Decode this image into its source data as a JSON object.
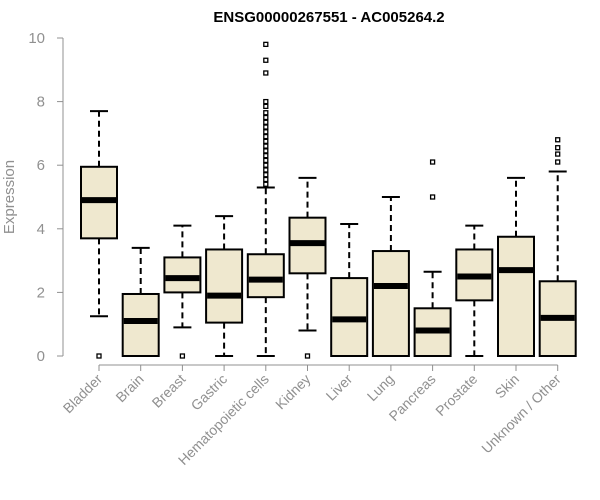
{
  "chart_data": {
    "type": "boxplot",
    "title": "ENSG00000267551 - AC005264.2",
    "ylabel": "Expression",
    "xlabel": "",
    "ylim": [
      0,
      10
    ],
    "yticks": [
      0,
      2,
      4,
      6,
      8,
      10
    ],
    "grid": false,
    "legend": "none",
    "colors": {
      "box_fill": "#efe8cf",
      "stroke": "#000000",
      "axis": "#909090"
    },
    "categories": [
      "Bladder",
      "Brain",
      "Breast",
      "Gastric",
      "Hematopoietic cells",
      "Kidney",
      "Liver",
      "Lung",
      "Pancreas",
      "Prostate",
      "Skin",
      "Unknown / Other"
    ],
    "boxes": [
      {
        "q1": 3.7,
        "median": 4.9,
        "q3": 5.95,
        "whisker_low": 1.25,
        "whisker_high": 7.7,
        "outliers": [
          0.0
        ]
      },
      {
        "q1": 0.0,
        "median": 1.1,
        "q3": 1.95,
        "whisker_low": 0.0,
        "whisker_high": 3.4,
        "outliers": []
      },
      {
        "q1": 2.0,
        "median": 2.45,
        "q3": 3.1,
        "whisker_low": 0.9,
        "whisker_high": 4.1,
        "outliers": [
          0.0
        ]
      },
      {
        "q1": 1.05,
        "median": 1.9,
        "q3": 3.35,
        "whisker_low": 0.0,
        "whisker_high": 4.4,
        "outliers": []
      },
      {
        "q1": 1.85,
        "median": 2.4,
        "q3": 3.2,
        "whisker_low": 0.0,
        "whisker_high": 5.3,
        "outliers": [
          5.4,
          5.55,
          5.7,
          5.85,
          6.0,
          6.15,
          6.3,
          6.45,
          6.6,
          6.75,
          6.9,
          7.05,
          7.2,
          7.35,
          7.5,
          7.65,
          7.85,
          8.0,
          8.9,
          9.3,
          9.8
        ]
      },
      {
        "q1": 2.6,
        "median": 3.55,
        "q3": 4.35,
        "whisker_low": 0.8,
        "whisker_high": 5.6,
        "outliers": [
          0.0
        ]
      },
      {
        "q1": 0.0,
        "median": 1.15,
        "q3": 2.45,
        "whisker_low": 0.0,
        "whisker_high": 4.15,
        "outliers": []
      },
      {
        "q1": 0.0,
        "median": 2.2,
        "q3": 3.3,
        "whisker_low": 0.0,
        "whisker_high": 5.0,
        "outliers": []
      },
      {
        "q1": 0.0,
        "median": 0.8,
        "q3": 1.5,
        "whisker_low": 0.0,
        "whisker_high": 2.65,
        "outliers": [
          5.0,
          6.1
        ]
      },
      {
        "q1": 1.75,
        "median": 2.5,
        "q3": 3.35,
        "whisker_low": 0.0,
        "whisker_high": 4.1,
        "outliers": []
      },
      {
        "q1": 0.0,
        "median": 2.7,
        "q3": 3.75,
        "whisker_low": 0.0,
        "whisker_high": 5.6,
        "outliers": []
      },
      {
        "q1": 0.0,
        "median": 1.2,
        "q3": 2.35,
        "whisker_low": 0.0,
        "whisker_high": 5.8,
        "outliers": [
          6.1,
          6.35,
          6.55,
          6.8
        ]
      }
    ]
  }
}
